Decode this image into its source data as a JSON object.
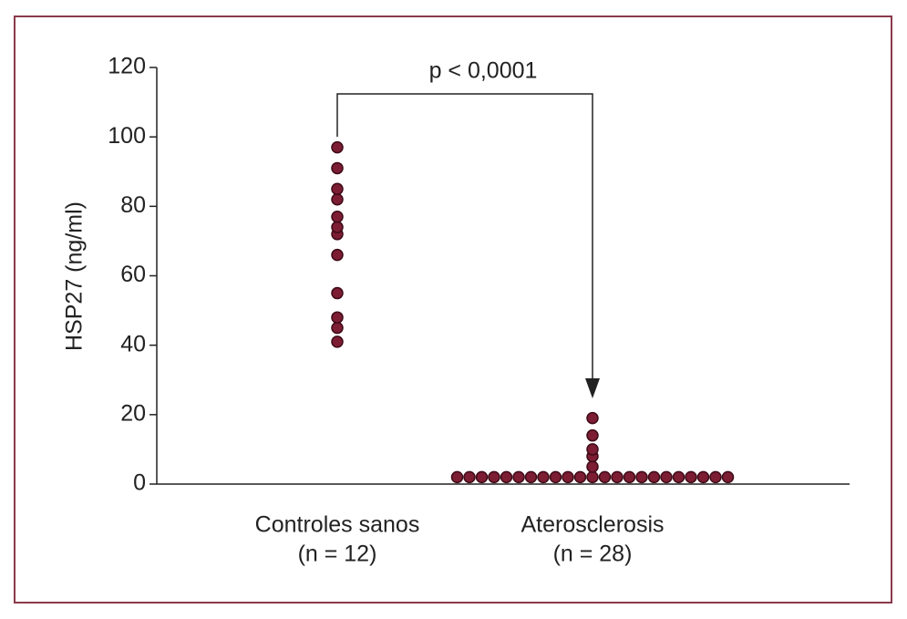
{
  "chart_data": {
    "type": "dot",
    "y_label": "HSP27 (ng/ml)",
    "annotation": "p < 0,0001",
    "categories": [
      "Controles sanos",
      "Aterosclerosis"
    ],
    "category_sublabels": [
      "(n = 12)",
      "(n = 28)"
    ],
    "values": [
      [
        97,
        91,
        85,
        82,
        77,
        74,
        72,
        66,
        55,
        48,
        45,
        41
      ],
      [
        19,
        14,
        10,
        8,
        5,
        2,
        2,
        2,
        2,
        2,
        2,
        2,
        2,
        2,
        2,
        2,
        2,
        2,
        2,
        2,
        2,
        2,
        2,
        2,
        2,
        2,
        2,
        2
      ]
    ],
    "color": "#7d1d33",
    "ylim": [
      0,
      120
    ],
    "yticks": [
      0,
      20,
      40,
      60,
      80,
      100,
      120
    ]
  }
}
